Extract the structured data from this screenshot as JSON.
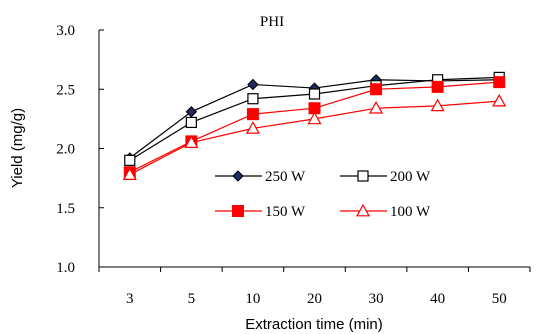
{
  "chart_data": {
    "type": "line",
    "title": "PHI",
    "xlabel": "Extraction time (min)",
    "ylabel": "Yield (mg/g)",
    "categories": [
      "3",
      "5",
      "10",
      "20",
      "30",
      "40",
      "50"
    ],
    "ylim": [
      1.0,
      3.0
    ],
    "yticks": [
      "1.0",
      "1.5",
      "2.0",
      "2.5",
      "3.0"
    ],
    "grid": false,
    "legend_position": "center-right",
    "series": [
      {
        "name": "250 W",
        "values": [
          1.92,
          2.31,
          2.54,
          2.51,
          2.58,
          2.57,
          2.58
        ],
        "color": "#000000",
        "marker": "diamond-filled"
      },
      {
        "name": "200 W",
        "values": [
          1.9,
          2.22,
          2.42,
          2.46,
          2.53,
          2.58,
          2.6
        ],
        "color": "#000000",
        "marker": "square-open"
      },
      {
        "name": "150 W",
        "values": [
          1.8,
          2.06,
          2.29,
          2.34,
          2.5,
          2.52,
          2.56
        ],
        "color": "#ff0000",
        "marker": "square-filled"
      },
      {
        "name": "100 W",
        "values": [
          1.78,
          2.05,
          2.17,
          2.25,
          2.34,
          2.36,
          2.4
        ],
        "color": "#ff0000",
        "marker": "triangle-open"
      }
    ]
  }
}
